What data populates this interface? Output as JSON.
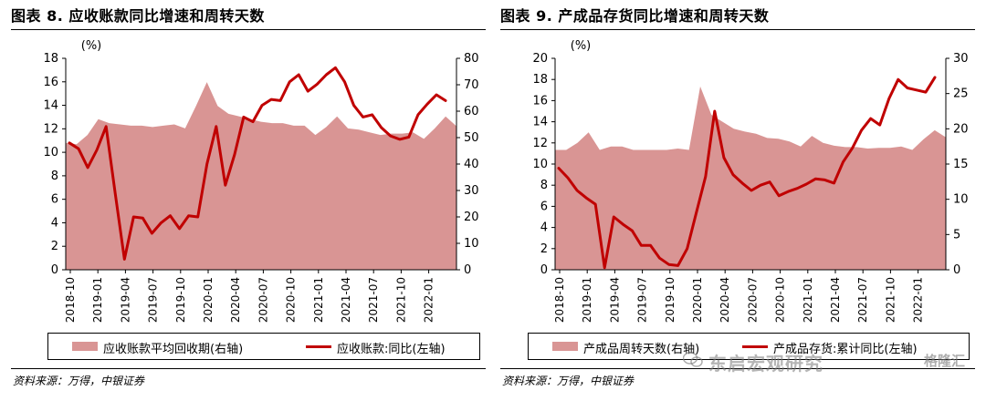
{
  "source": "资料来源：万得，中银证券",
  "watermark": {
    "text": "东启宏观研究",
    "brand": "格隆汇"
  },
  "colors": {
    "area": "#d99594",
    "line": "#c00000"
  },
  "x_ticks": [
    "2018-10",
    "2019-01",
    "2019-04",
    "2019-07",
    "2019-10",
    "2020-01",
    "2020-04",
    "2020-07",
    "2020-10",
    "2021-01",
    "2021-04",
    "2021-07",
    "2021-10",
    "2022-01"
  ],
  "chart_data": [
    {
      "type": "area+line",
      "title": "图表 8. 应收账款同比增速和周转天数",
      "left_unit": "(%)",
      "left_ylim": [
        0,
        18
      ],
      "left_ticks": [
        0,
        2,
        4,
        6,
        8,
        10,
        12,
        14,
        16,
        18
      ],
      "right_ylim": [
        0,
        80
      ],
      "right_ticks": [
        0,
        10,
        20,
        30,
        40,
        50,
        60,
        70,
        80
      ],
      "series": [
        {
          "name": "应收账款平均回收期(右轴)",
          "axis": "right",
          "kind": "area",
          "values": [
            48,
            47.5,
            51,
            57,
            55.5,
            55,
            54.5,
            54.5,
            54,
            54.5,
            55,
            53.5,
            62,
            71,
            62,
            59,
            58,
            57,
            56,
            55.5,
            55.5,
            54.5,
            54.5,
            51,
            54,
            58,
            53.5,
            53,
            52,
            51,
            51.5,
            51.5,
            52,
            49.5,
            53.5,
            58,
            54.3
          ]
        },
        {
          "name": "应收账款:同比(左轴)",
          "axis": "left",
          "kind": "line",
          "values": [
            10.8,
            10.3,
            8.7,
            10.2,
            12.2,
            6.5,
            0.9,
            4.5,
            4.4,
            3.1,
            4.0,
            4.6,
            3.5,
            4.6,
            4.5,
            9.0,
            12.2,
            7.2,
            9.8,
            13.0,
            12.6,
            14.0,
            14.5,
            14.4,
            16.0,
            16.6,
            15.2,
            15.8,
            16.6,
            17.2,
            16.0,
            14.0,
            13.0,
            13.2,
            12.1,
            11.4,
            11.1,
            11.3,
            13.2,
            14.1,
            14.9,
            14.4
          ]
        }
      ]
    },
    {
      "type": "area+line",
      "title": "图表 9. 产成品存货同比增速和周转天数",
      "left_unit": "(%)",
      "left_ylim": [
        0,
        20
      ],
      "left_ticks": [
        0,
        2,
        4,
        6,
        8,
        10,
        12,
        14,
        16,
        18,
        20
      ],
      "right_ylim": [
        0,
        30
      ],
      "right_ticks": [
        0,
        5,
        10,
        15,
        20,
        25,
        30
      ],
      "series": [
        {
          "name": "产成品周转天数(右轴)",
          "axis": "right",
          "kind": "area",
          "values": [
            17,
            17,
            18,
            19.5,
            17,
            17.5,
            17.5,
            17,
            17,
            17,
            17,
            17.2,
            17,
            26,
            22,
            21,
            20,
            19.6,
            19.3,
            18.7,
            18.6,
            18.2,
            17.5,
            19,
            18,
            17.6,
            17.4,
            17.4,
            17.2,
            17.3,
            17.3,
            17.5,
            17,
            18.5,
            19.8,
            18.8
          ]
        },
        {
          "name": "产成品存货:累计同比(左轴)",
          "axis": "left",
          "kind": "line",
          "values": [
            9.6,
            8.7,
            7.5,
            6.8,
            6.2,
            0.2,
            5.0,
            4.3,
            3.7,
            2.3,
            2.3,
            1.1,
            0.5,
            0.4,
            2.0,
            5.4,
            8.8,
            15.0,
            10.6,
            9.0,
            8.2,
            7.5,
            8.0,
            8.3,
            7.0,
            7.4,
            7.7,
            8.1,
            8.6,
            8.5,
            8.2,
            10.2,
            11.5,
            13.2,
            14.3,
            13.7,
            16.2,
            18.0,
            17.2,
            17.0,
            16.8,
            18.2
          ]
        }
      ]
    }
  ]
}
